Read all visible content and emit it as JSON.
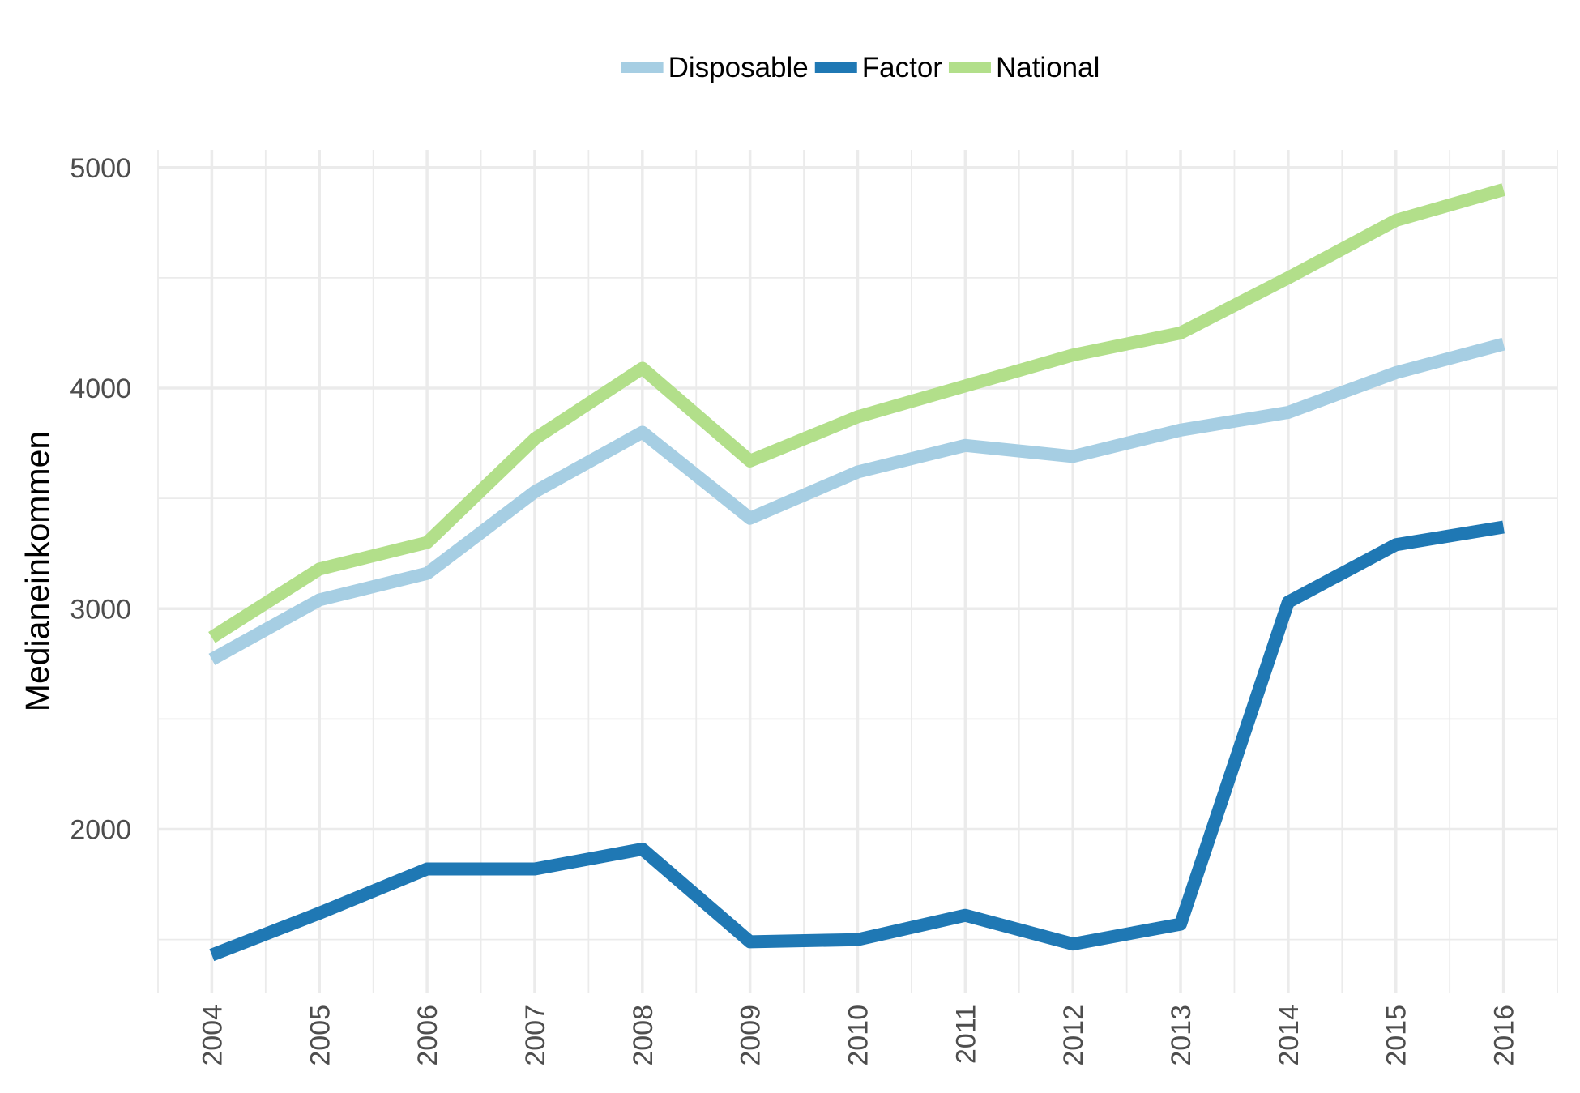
{
  "chart_data": {
    "type": "line",
    "title": "",
    "xlabel": "",
    "ylabel": "Medianeinkommen",
    "x": [
      "2004",
      "2005",
      "2006",
      "2007",
      "2008",
      "2009",
      "2010",
      "2011",
      "2012",
      "2013",
      "2014",
      "2015",
      "2016"
    ],
    "ylim": [
      1260,
      5080
    ],
    "yticks": [
      2000,
      3000,
      4000,
      5000
    ],
    "grid": true,
    "legend_position": "top",
    "series": [
      {
        "name": "Disposable",
        "color": "#a6cee3",
        "values": [
          2770,
          3040,
          3160,
          3530,
          3800,
          3410,
          3620,
          3740,
          3690,
          3810,
          3890,
          4070,
          4200
        ]
      },
      {
        "name": "Factor",
        "color": "#1f78b4",
        "values": [
          1430,
          1620,
          1820,
          1820,
          1910,
          1490,
          1500,
          1610,
          1480,
          1570,
          3030,
          3290,
          3370
        ]
      },
      {
        "name": "National",
        "color": "#b2df8a",
        "values": [
          2870,
          3180,
          3300,
          3770,
          4090,
          3670,
          3870,
          4010,
          4150,
          4250,
          4500,
          4760,
          4900
        ]
      }
    ]
  }
}
